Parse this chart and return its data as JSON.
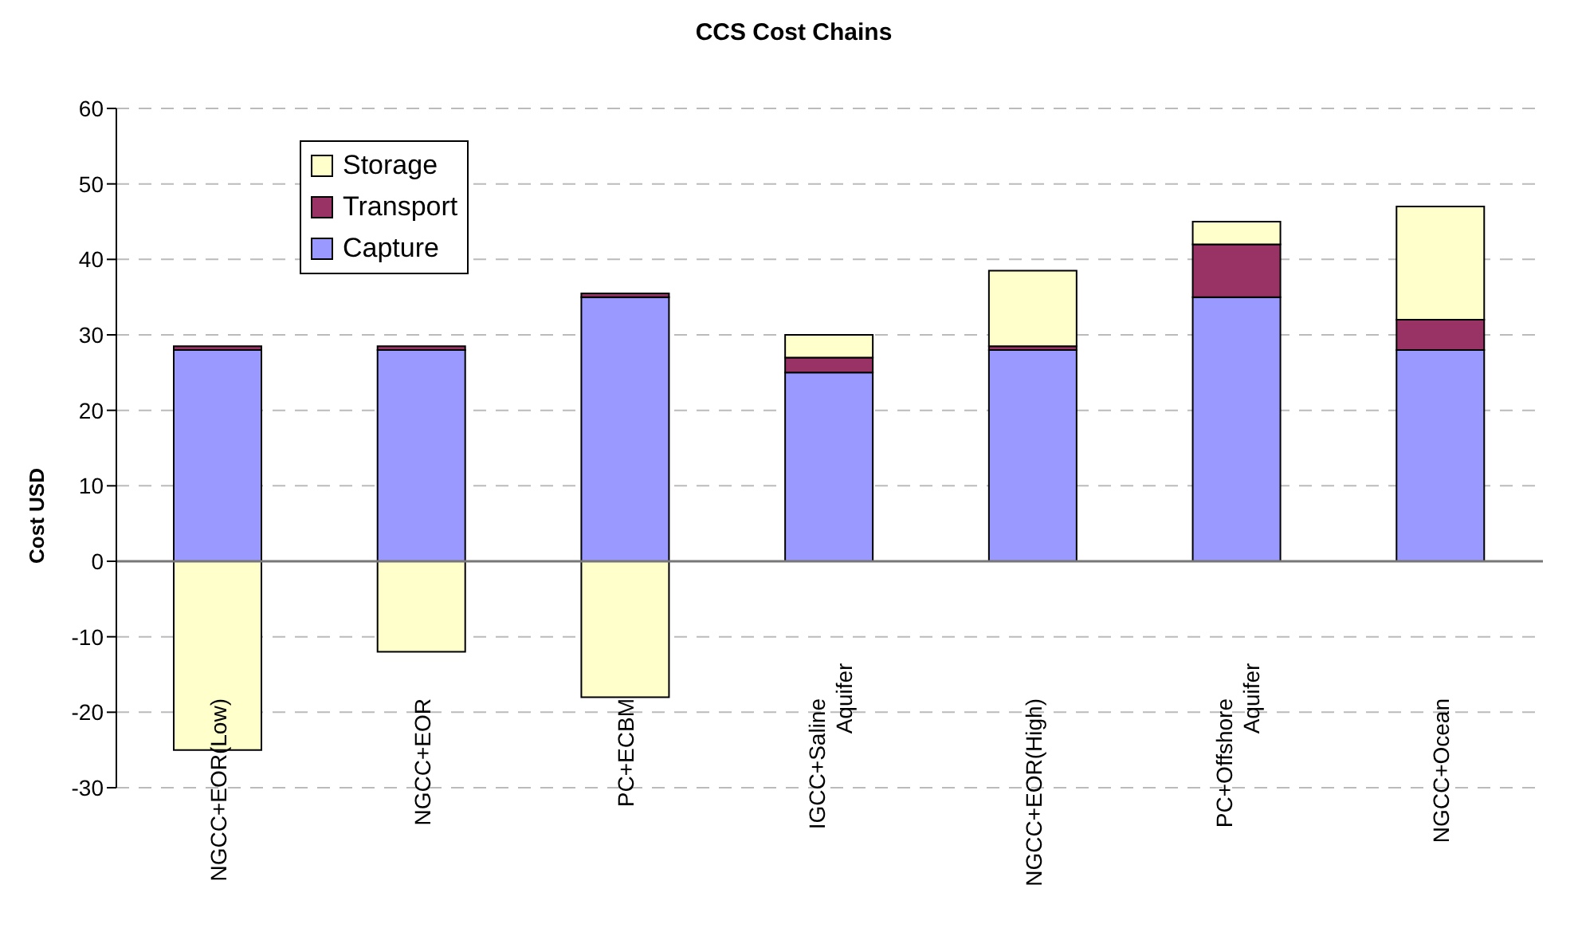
{
  "chart_data": {
    "type": "bar",
    "title": "CCS Cost Chains",
    "ylabel": "Cost USD",
    "stacked": true,
    "categories": [
      "NGCC+EOR(Low)",
      "NGCC+EOR",
      "PC+ECBM",
      "IGCC+Saline Aquifer",
      "NGCC+EOR(High)",
      "PC+Offshore Aquifer",
      "NGCC+Ocean"
    ],
    "series": [
      {
        "name": "Capture",
        "color": "#9999ff",
        "values": [
          28,
          28,
          35,
          25,
          28,
          35,
          28
        ]
      },
      {
        "name": "Transport",
        "color": "#993366",
        "values": [
          0.5,
          0.5,
          0.5,
          2,
          0.5,
          7,
          4
        ]
      },
      {
        "name": "Storage",
        "color": "#ffffcc",
        "values": [
          -25,
          -12,
          -18,
          3,
          10,
          3,
          15
        ]
      }
    ],
    "ylim": [
      -30,
      60
    ],
    "yticks": [
      -30,
      -20,
      -10,
      0,
      10,
      20,
      30,
      40,
      50,
      60
    ],
    "grid": "y",
    "legend": "top left"
  }
}
